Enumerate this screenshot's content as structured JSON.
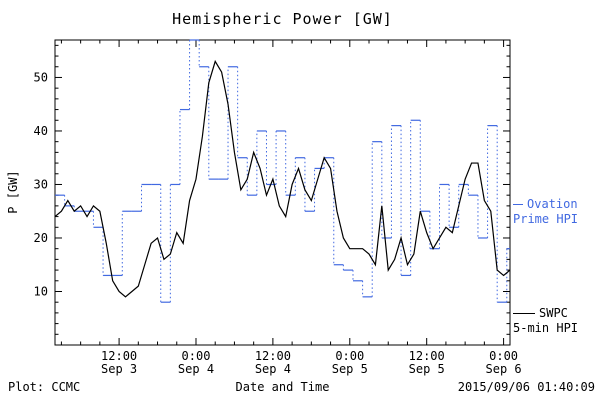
{
  "title": "Hemispheric Power [GW]",
  "ylabel": "P [GW]",
  "xlabel": "Date and Time",
  "footer": {
    "left": "Plot: CCMC",
    "right": "2015/09/06 01:40:09"
  },
  "legend": {
    "ovation": {
      "line1": "Ovation",
      "line2": "Prime HPI",
      "color": "#4169e1"
    },
    "swpc": {
      "line1": "SWPC",
      "line2": "5-min HPI",
      "color": "#000000"
    }
  },
  "chart_data": {
    "type": "line",
    "title": "Hemispheric Power [GW]",
    "xlabel": "Date and Time",
    "ylabel": "P [GW]",
    "xlim": [
      2,
      73
    ],
    "ylim": [
      0,
      57
    ],
    "grid": false,
    "legend_position": "right-outside",
    "yticks": [
      10,
      20,
      30,
      40,
      50
    ],
    "xticks": [
      {
        "t": 12,
        "time": "12:00",
        "date": "Sep 3"
      },
      {
        "t": 24,
        "time": "0:00",
        "date": "Sep 4"
      },
      {
        "t": 36,
        "time": "12:00",
        "date": "Sep 4"
      },
      {
        "t": 48,
        "time": "0:00",
        "date": "Sep 5"
      },
      {
        "t": 60,
        "time": "12:00",
        "date": "Sep 5"
      },
      {
        "t": 72,
        "time": "0:00",
        "date": "Sep 6"
      }
    ],
    "x_units": "hours from 2015-09-03 00:00 UT",
    "series": [
      {
        "name": "SWPC 5-min HPI",
        "color": "#000000",
        "style": "solid-line",
        "x": [
          2,
          3,
          4,
          5,
          6,
          7,
          8,
          9,
          10,
          11,
          12,
          13,
          14,
          15,
          16,
          17,
          18,
          19,
          20,
          21,
          22,
          23,
          24,
          25,
          26,
          27,
          28,
          29,
          30,
          31,
          32,
          33,
          34,
          35,
          36,
          37,
          38,
          39,
          40,
          41,
          42,
          43,
          44,
          45,
          46,
          47,
          48,
          49,
          50,
          51,
          52,
          53,
          54,
          55,
          56,
          57,
          58,
          59,
          60,
          61,
          62,
          63,
          64,
          65,
          66,
          67,
          68,
          69,
          70,
          71,
          72,
          73
        ],
        "y": [
          24,
          25,
          27,
          25,
          26,
          24,
          26,
          25,
          19,
          12,
          10,
          9,
          10,
          11,
          15,
          19,
          20,
          16,
          17,
          21,
          19,
          27,
          31,
          39,
          49,
          53,
          51,
          45,
          36,
          29,
          31,
          36,
          33,
          28,
          31,
          26,
          24,
          30,
          33,
          29,
          27,
          31,
          35,
          33,
          25,
          20,
          18,
          18,
          18,
          17,
          15,
          26,
          14,
          16,
          20,
          15,
          17,
          25,
          21,
          18,
          20,
          22,
          21,
          26,
          31,
          34,
          34,
          27,
          25,
          14,
          13,
          14
        ]
      },
      {
        "name": "Ovation Prime HPI",
        "color": "#4169e1",
        "style": "step-dotted",
        "x": [
          2,
          3.5,
          5,
          6.5,
          8,
          9.5,
          11,
          12.5,
          14,
          15.5,
          17,
          18.5,
          20,
          21.5,
          23,
          24.5,
          26,
          27.5,
          29,
          30.5,
          32,
          33.5,
          35,
          36.5,
          38,
          39.5,
          41,
          42.5,
          44,
          45.5,
          47,
          48.5,
          50,
          51.5,
          53,
          54.5,
          56,
          57.5,
          59,
          60.5,
          62,
          63.5,
          65,
          66.5,
          68,
          69.5,
          71,
          72.5
        ],
        "y": [
          28,
          26,
          25,
          25,
          22,
          13,
          13,
          25,
          25,
          30,
          30,
          8,
          30,
          44,
          57,
          52,
          31,
          31,
          52,
          35,
          28,
          40,
          30,
          40,
          28,
          35,
          25,
          33,
          35,
          15,
          14,
          12,
          9,
          38,
          20,
          41,
          13,
          42,
          25,
          18,
          30,
          22,
          30,
          28,
          20,
          41,
          8,
          18
        ]
      }
    ]
  }
}
